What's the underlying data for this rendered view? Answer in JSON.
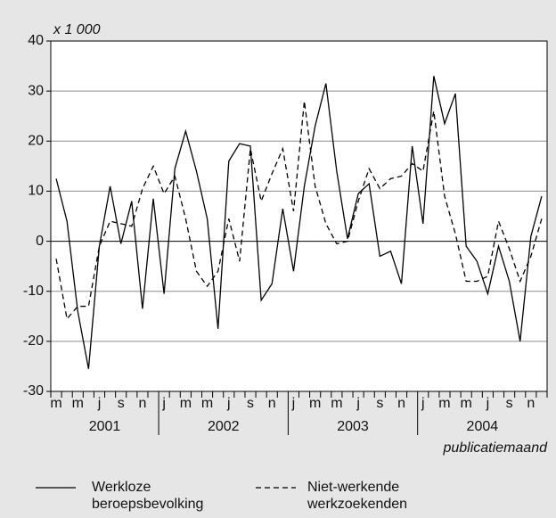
{
  "chart_data": {
    "type": "line",
    "y_axis_label": "x 1 000",
    "x_axis_label": "publicatiemaand",
    "categories": [
      "m",
      null,
      "m",
      null,
      "j",
      null,
      "s",
      null,
      "n",
      null,
      "j",
      null,
      "m",
      null,
      "m",
      null,
      "j",
      null,
      "s",
      null,
      "n",
      null,
      "j",
      null,
      "m",
      null,
      "m",
      null,
      "j",
      null,
      "s",
      null,
      "n",
      null,
      "j",
      null,
      "m",
      null,
      "m",
      null,
      "j",
      null,
      "s",
      null,
      "n",
      null
    ],
    "years": [
      "2001",
      "2002",
      "2003",
      "2004"
    ],
    "series": [
      {
        "name": "Werkloze beroepsbevolking",
        "color": "#000000",
        "dash": false,
        "values": [
          12.5,
          4,
          -14,
          -25.5,
          -1,
          11,
          -0.5,
          8,
          -13.5,
          8.5,
          -10.5,
          14.5,
          22,
          14,
          4.5,
          -17.5,
          16,
          19.5,
          19,
          -11.8,
          -8.5,
          6.5,
          -6,
          11,
          23,
          31.5,
          14,
          0.5,
          9.5,
          11.5,
          -3,
          -2,
          -8.5,
          19,
          3.5,
          33,
          23.5,
          29.5,
          -1,
          -4,
          -10.5,
          -1,
          -8,
          -20,
          1,
          9
        ]
      },
      {
        "name": "Niet-werkende werkzoekenden",
        "color": "#000000",
        "dash": true,
        "values": [
          -3.5,
          -15.5,
          -13,
          -13,
          -1,
          4,
          3.5,
          3,
          10.5,
          15,
          9.5,
          13,
          4.5,
          -6,
          -9,
          -6,
          4.5,
          -4,
          18.5,
          8,
          13.5,
          18.5,
          6,
          28,
          11,
          3.5,
          -0.5,
          0,
          8,
          14.5,
          10.5,
          12.5,
          13,
          15.5,
          14,
          26,
          9,
          1.5,
          -8,
          -8,
          -7,
          4,
          -1.5,
          -8,
          -3,
          4.5
        ]
      }
    ],
    "ylim": [
      -30,
      40
    ],
    "yticks": [
      -30,
      -20,
      -10,
      0,
      10,
      20,
      30,
      40
    ],
    "grid": true
  }
}
